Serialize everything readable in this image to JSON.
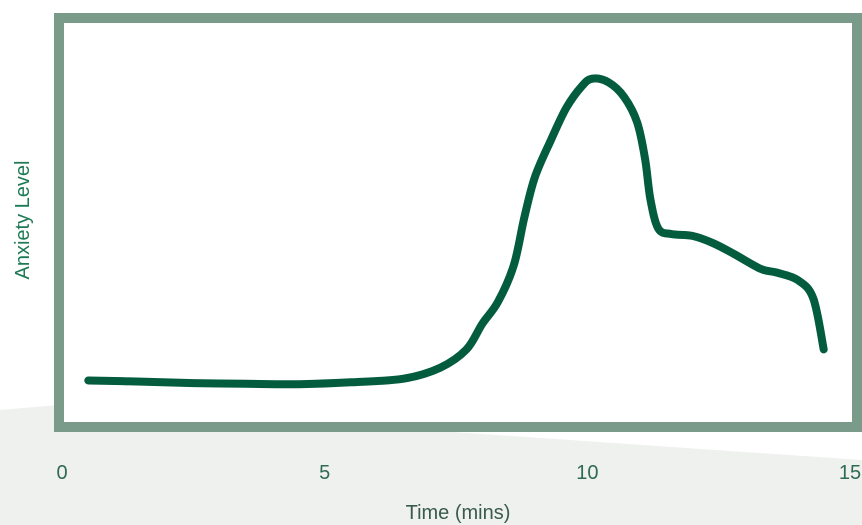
{
  "chart_data": {
    "type": "line",
    "title": "",
    "xlabel": "Time (mins)",
    "ylabel": "Anxiety Level",
    "xlim": [
      0,
      15
    ],
    "ylim": [
      0,
      1
    ],
    "x_ticks": [
      "0",
      "5",
      "10",
      "15"
    ],
    "x_tick_values": [
      0,
      5,
      10,
      15
    ],
    "y_ticks": [],
    "grid": false,
    "legend": "none",
    "series": [
      {
        "x": [
          0.5,
          1.5,
          2.5,
          3.5,
          4.5,
          5.5,
          6.5,
          7.2,
          7.7,
          8.0,
          8.3,
          8.6,
          8.8,
          9.0,
          9.3,
          9.6,
          9.9,
          10.1,
          10.4,
          10.7,
          10.95,
          11.1,
          11.2,
          11.35,
          11.6,
          12.0,
          12.4,
          12.8,
          13.3,
          13.6,
          14.0,
          14.3,
          14.5
        ],
        "y": [
          0.015,
          0.012,
          0.008,
          0.006,
          0.005,
          0.01,
          0.02,
          0.05,
          0.1,
          0.17,
          0.23,
          0.33,
          0.46,
          0.57,
          0.67,
          0.76,
          0.82,
          0.84,
          0.83,
          0.79,
          0.72,
          0.62,
          0.51,
          0.43,
          0.415,
          0.41,
          0.39,
          0.36,
          0.32,
          0.31,
          0.29,
          0.24,
          0.1
        ]
      }
    ],
    "colors": {
      "line": "#045c3e",
      "frame": "#7a9a8a",
      "ylabel": "#1e7a55",
      "tick": "#2f6a52",
      "xlabel": "#3a5a4d",
      "backdrop": "#eef1ee"
    }
  }
}
